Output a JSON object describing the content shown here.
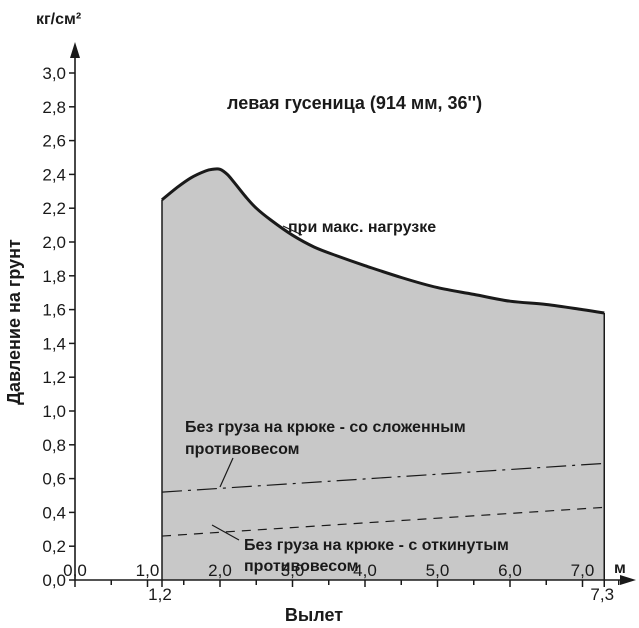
{
  "chart_data": {
    "type": "area",
    "title": "левая гусеница (914 мм, 36'')",
    "xlabel": "Вылет",
    "ylabel": "Давление на грунт",
    "xunit": "м",
    "yunit": "кг/см²",
    "xlim": [
      0,
      7.3
    ],
    "ylim": [
      0,
      3.0
    ],
    "xticks": [
      {
        "v": 0.0,
        "label": "0,0"
      },
      {
        "v": 1.0,
        "label": "1,0"
      },
      {
        "v": 2.0,
        "label": "2,0"
      },
      {
        "v": 3.0,
        "label": "3,0"
      },
      {
        "v": 4.0,
        "label": "4,0"
      },
      {
        "v": 5.0,
        "label": "5,0"
      },
      {
        "v": 6.0,
        "label": "6,0"
      },
      {
        "v": 7.0,
        "label": "7,0"
      }
    ],
    "xticks_extra": [
      {
        "v": 1.2,
        "label": "1,2"
      },
      {
        "v": 7.3,
        "label": "7,3"
      }
    ],
    "yticks": [
      {
        "v": 0.0,
        "label": "0,0"
      },
      {
        "v": 0.2,
        "label": "0,2"
      },
      {
        "v": 0.4,
        "label": "0,4"
      },
      {
        "v": 0.6,
        "label": "0,6"
      },
      {
        "v": 0.8,
        "label": "0,8"
      },
      {
        "v": 1.0,
        "label": "1,0"
      },
      {
        "v": 1.2,
        "label": "1,2"
      },
      {
        "v": 1.4,
        "label": "1,4"
      },
      {
        "v": 1.6,
        "label": "1,6"
      },
      {
        "v": 1.8,
        "label": "1,8"
      },
      {
        "v": 2.0,
        "label": "2,0"
      },
      {
        "v": 2.2,
        "label": "2,2"
      },
      {
        "v": 2.4,
        "label": "2,4"
      },
      {
        "v": 2.6,
        "label": "2,6"
      },
      {
        "v": 2.8,
        "label": "2,8"
      },
      {
        "v": 3.0,
        "label": "3,0"
      }
    ],
    "grid": false,
    "fill_color": "#c8c8c8",
    "series": [
      {
        "name": "при макс. нагрузке",
        "style": "solid",
        "x": [
          1.2,
          1.4,
          1.6,
          1.8,
          1.9,
          2.0,
          2.1,
          2.2,
          2.35,
          2.5,
          2.7,
          3.0,
          3.3,
          3.6,
          4.0,
          4.5,
          5.0,
          5.5,
          6.0,
          6.5,
          7.0,
          7.3
        ],
        "y": [
          2.25,
          2.32,
          2.38,
          2.42,
          2.43,
          2.43,
          2.4,
          2.35,
          2.27,
          2.2,
          2.13,
          2.04,
          1.97,
          1.92,
          1.86,
          1.79,
          1.73,
          1.69,
          1.65,
          1.63,
          1.6,
          1.58
        ]
      },
      {
        "name": "Без груза на крюке - со сложенным противовесом",
        "style": "dash-dot",
        "x": [
          1.2,
          7.3
        ],
        "y": [
          0.52,
          0.69
        ]
      },
      {
        "name": "Без груза на крюке - с откинутым противовесом",
        "style": "dashed",
        "x": [
          1.2,
          7.3
        ],
        "y": [
          0.26,
          0.43
        ]
      }
    ],
    "annotations": {
      "max_load": "при макс. нагрузке",
      "folded_line1": "Без груза на крюке - со сложенным",
      "folded_line2": "противовесом",
      "tilted_line1": "Без груза на крюке - с откинутым",
      "tilted_line2": "противовесом"
    }
  }
}
